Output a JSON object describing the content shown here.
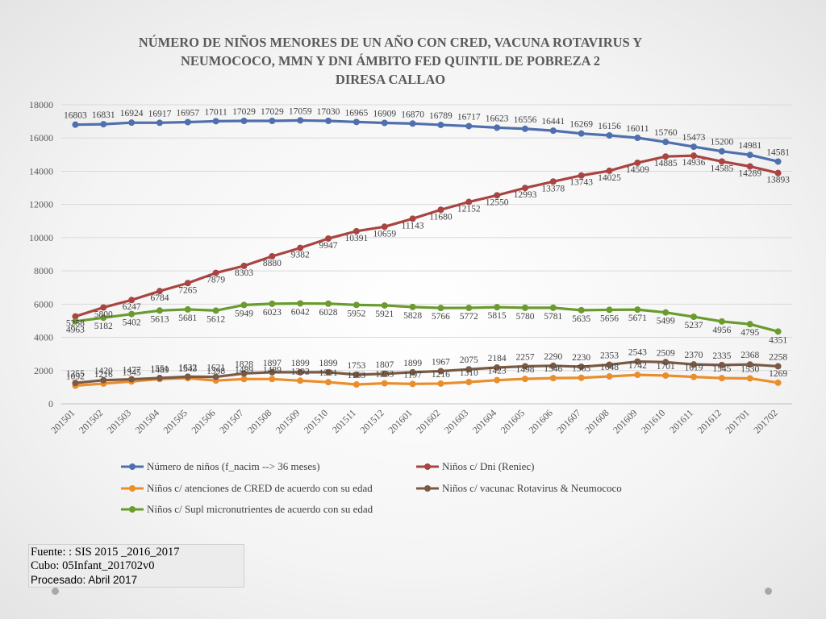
{
  "source": {
    "line1": "Fuente: : SIS 2015 _2016_2017",
    "line2": "Cubo:  05Infant_201702v0",
    "line3": "Procesado: Abril 2017"
  },
  "chart_data": {
    "type": "line",
    "title": [
      "NÚMERO DE NIÑOS MENORES DE UN AÑO CON CRED, VACUNA ROTAVIRUS Y",
      "NEUMOCOCO, MMN Y DNI  ÁMBITO FED QUINTIL DE POBREZA 2",
      "DIRESA CALLAO"
    ],
    "ylim": [
      0,
      18000
    ],
    "yticks": [
      "0",
      "2000",
      "4000",
      "6000",
      "8000",
      "10000",
      "12000",
      "14000",
      "16000",
      "18000"
    ],
    "grid": true,
    "legend_position": "bottom",
    "categories": [
      "201501",
      "201502",
      "201503",
      "201504",
      "201505",
      "201506",
      "201507",
      "201508",
      "201509",
      "201510",
      "201511",
      "201512",
      "201601",
      "201602",
      "201603",
      "201604",
      "201605",
      "201606",
      "201607",
      "201608",
      "201609",
      "201610",
      "201611",
      "201612",
      "201701",
      "201702"
    ],
    "series": [
      {
        "name": "Número de niños (f_nacim --> 36 meses)",
        "color": "#4f6fad",
        "values": [
          16803,
          16831,
          16924,
          16917,
          16957,
          17011,
          17029,
          17029,
          17059,
          17030,
          16965,
          16909,
          16870,
          16789,
          16717,
          16623,
          16556,
          16441,
          16269,
          16156,
          16011,
          15760,
          15473,
          15200,
          14981,
          14581
        ]
      },
      {
        "name": "Niños c/ Dni (Reniec)",
        "color": "#a84442",
        "values": [
          5258,
          5800,
          6247,
          6784,
          7265,
          7879,
          8303,
          8880,
          9382,
          9947,
          10391,
          10659,
          11143,
          11680,
          12152,
          12550,
          12993,
          13378,
          13743,
          14025,
          14509,
          14885,
          14936,
          14585,
          14289,
          13893
        ]
      },
      {
        "name": "Niños c/ atenciones de CRED de acuerdo con su edad",
        "color": "#e98e2d",
        "values": [
          1092,
          1216,
          1345,
          1489,
          1543,
          1398,
          1489,
          1489,
          1392,
          1301,
          1163,
          1233,
          1197,
          1216,
          1310,
          1423,
          1498,
          1546,
          1565,
          1648,
          1742,
          1701,
          1619,
          1545,
          1530,
          1269
        ]
      },
      {
        "name": "Niños c/ vacunac Rotavirus & Neumococo",
        "color": "#7a5a44",
        "values": [
          1255,
          1420,
          1477,
          1551,
          1632,
          1621,
          1828,
          1897,
          1899,
          1899,
          1753,
          1807,
          1899,
          1967,
          2075,
          2184,
          2257,
          2290,
          2230,
          2353,
          2543,
          2509,
          2370,
          2335,
          2368,
          2258
        ]
      },
      {
        "name": "Niños c/ Supl micronutrientes de acuerdo con su edad",
        "color": "#6a9b2e",
        "values": [
          4963,
          5182,
          5402,
          5613,
          5681,
          5612,
          5949,
          6023,
          6042,
          6028,
          5952,
          5921,
          5828,
          5766,
          5772,
          5815,
          5780,
          5781,
          5635,
          5656,
          5671,
          5499,
          5237,
          4956,
          4795,
          4351
        ]
      }
    ]
  }
}
